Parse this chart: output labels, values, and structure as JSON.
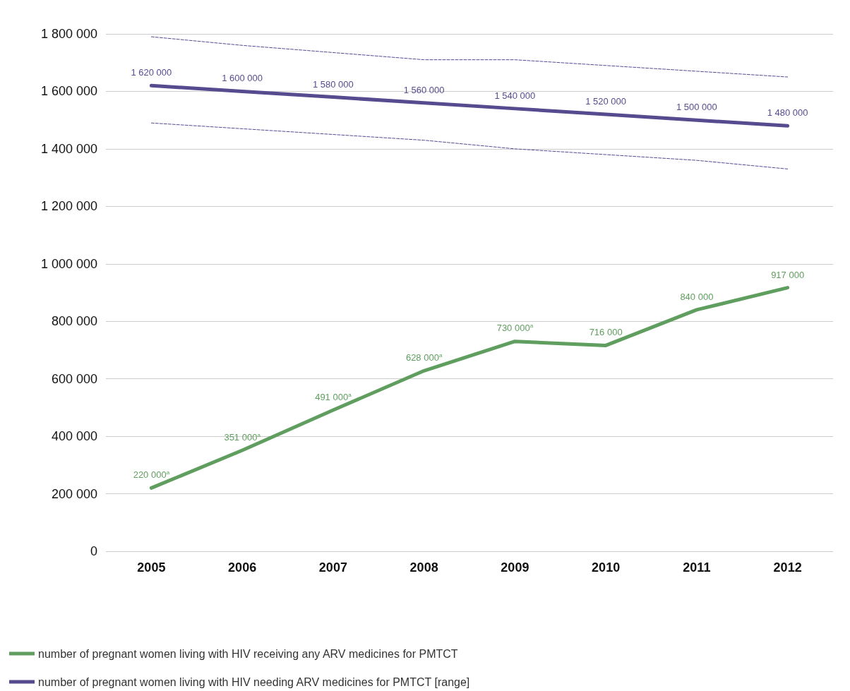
{
  "chart_data": {
    "type": "line",
    "categories": [
      "2005",
      "2006",
      "2007",
      "2008",
      "2009",
      "2010",
      "2011",
      "2012"
    ],
    "series": [
      {
        "name": "number of pregnant women living with HIV receiving any ARV medicines for PMTCT",
        "color": "#5f9e5f",
        "values": [
          220000,
          351000,
          491000,
          628000,
          730000,
          716000,
          840000,
          917000
        ],
        "value_labels": [
          "220 000$^{a}$",
          "351 000$^{a}$",
          "491 000$^{a}$",
          "628 000$^{a}$",
          "730 000$^{a}$",
          "716 000",
          "840 000",
          "917 000"
        ]
      },
      {
        "name": "number of pregnant women living with HIV needing ARV medicines for PMTCT [range]",
        "color": "#574b90",
        "values": [
          1620000,
          1600000,
          1580000,
          1560000,
          1540000,
          1520000,
          1500000,
          1480000
        ],
        "value_labels": [
          "1 620 000",
          "1 600 000",
          "1 580 000",
          "1 560 000",
          "1 540 000",
          "1 520 000",
          "1 500 000",
          "1 480 000"
        ]
      },
      {
        "color": "#574b90",
        "line_style": "dashed",
        "values": [
          1790000,
          1760000,
          1735000,
          1710000,
          1710000,
          1690000,
          1670000,
          1650000
        ]
      },
      {
        "color": "#574b90",
        "line_style": "dashed",
        "values": [
          1490000,
          1470000,
          1450000,
          1430000,
          1400000,
          1380000,
          1360000,
          1330000
        ]
      }
    ],
    "ylim": [
      0,
      1800000
    ],
    "yticks": [
      {
        "value": 0,
        "label": "0"
      },
      {
        "value": 200000,
        "label": "200 000"
      },
      {
        "value": 400000,
        "label": "400 000"
      },
      {
        "value": 600000,
        "label": "600 000"
      },
      {
        "value": 800000,
        "label": "800 000"
      },
      {
        "value": 1000000,
        "label": "1 000 000"
      },
      {
        "value": 1200000,
        "label": "1 200 000"
      },
      {
        "value": 1400000,
        "label": "1 400 000"
      },
      {
        "value": 1600000,
        "label": "1 600 000"
      },
      {
        "value": 1800000,
        "label": "1 800 000"
      }
    ],
    "grid": "y",
    "legend": "bottom left",
    "marker": "none",
    "line_style": "solid"
  }
}
